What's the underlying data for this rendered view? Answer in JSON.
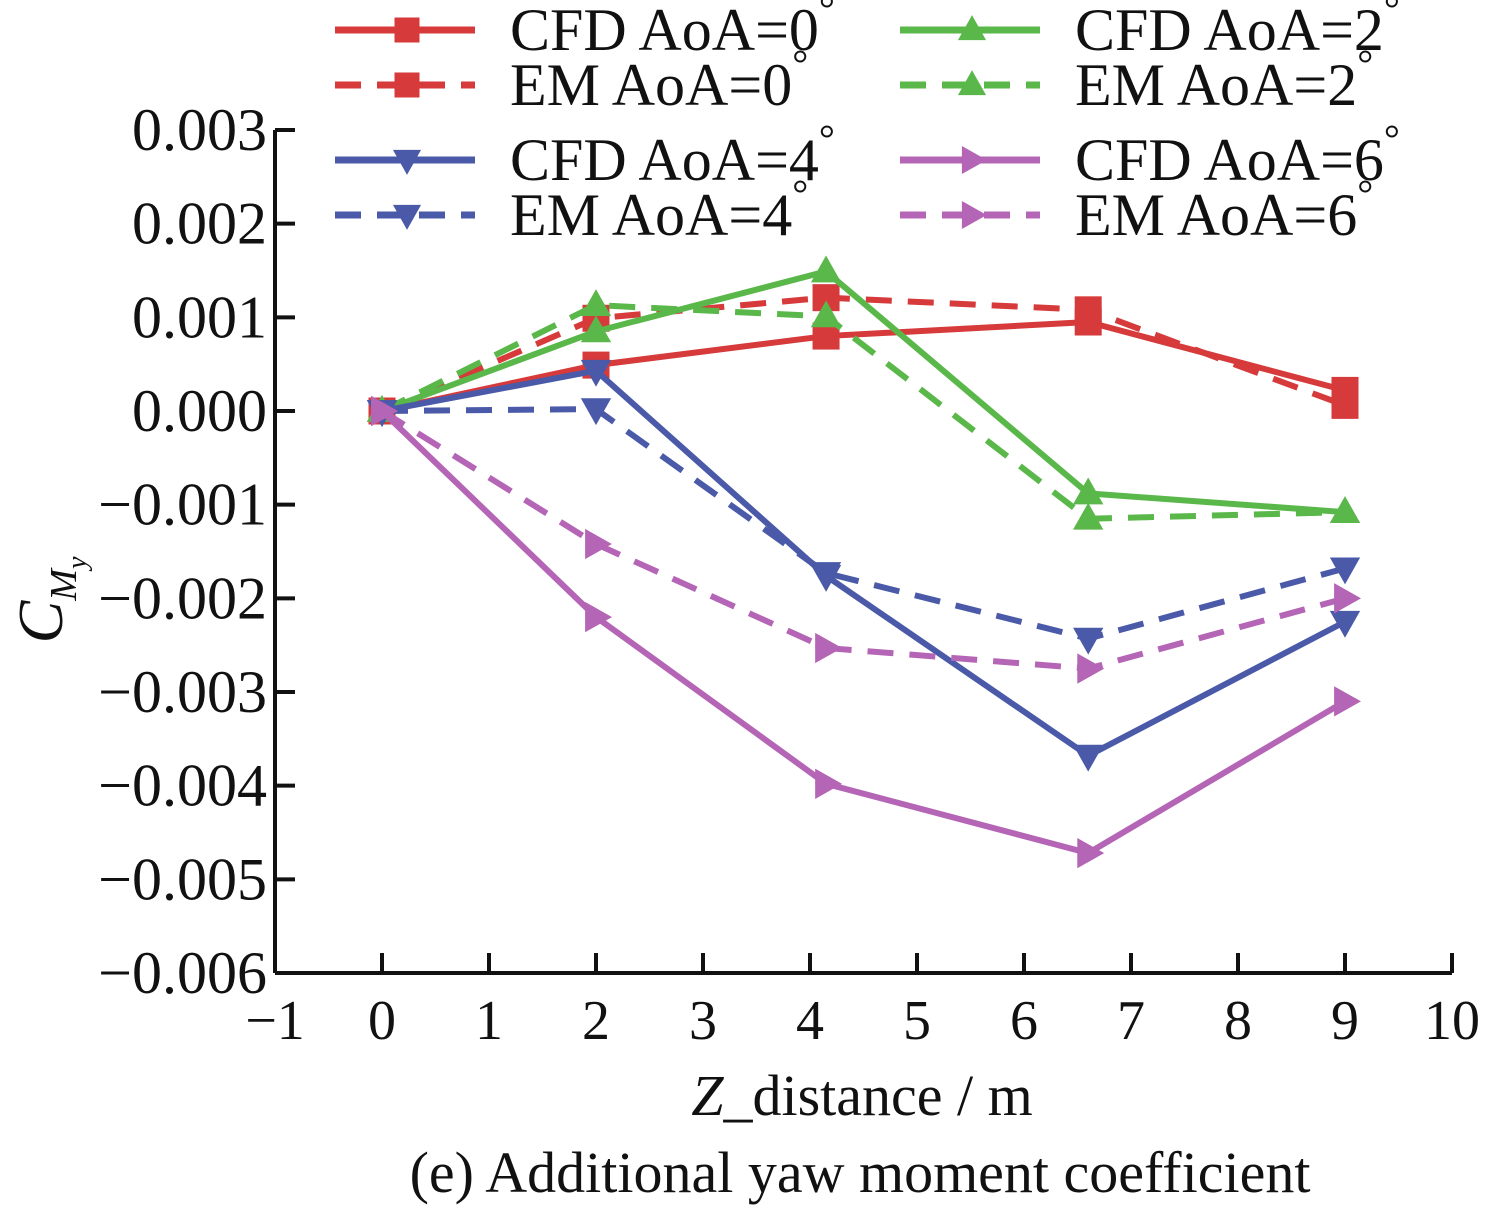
{
  "chart_data": {
    "type": "line",
    "title": "(e) Additional yaw moment coefficient",
    "xlabel": {
      "italic": "Z",
      "rest": "_distance / m"
    },
    "ylabel": {
      "main": "C",
      "sub": "M",
      "subsub": "y"
    },
    "xlim": [
      -1,
      10
    ],
    "ylim": [
      -0.006,
      0.003
    ],
    "x_ticks": [
      "−1",
      "0",
      "1",
      "2",
      "3",
      "4",
      "5",
      "6",
      "7",
      "8",
      "9",
      "10"
    ],
    "x_tick_values": [
      -1,
      0,
      1,
      2,
      3,
      4,
      5,
      6,
      7,
      8,
      9,
      10
    ],
    "y_ticks": [
      "0.003",
      "0.002",
      "0.001",
      "0.000",
      "−0.001",
      "−0.002",
      "−0.003",
      "−0.004",
      "−0.005",
      "−0.006"
    ],
    "y_tick_values": [
      0.003,
      0.002,
      0.001,
      0.0,
      -0.001,
      -0.002,
      -0.003,
      -0.004,
      -0.005,
      -0.006
    ],
    "x": [
      0,
      2,
      4.15,
      6.6,
      9
    ],
    "series": [
      {
        "name": "CFD AoA=0",
        "style": "solid",
        "color": "#d63a3a",
        "marker": "square",
        "values": [
          0.0,
          0.00049,
          0.0008,
          0.00095,
          0.00022
        ]
      },
      {
        "name": "EM AoA=0",
        "style": "dashed",
        "color": "#d63a3a",
        "marker": "square",
        "values": [
          0.0,
          0.00099,
          0.00121,
          0.00108,
          6e-05
        ]
      },
      {
        "name": "CFD AoA=2",
        "style": "solid",
        "color": "#5ab84a",
        "marker": "triangle-up",
        "values": [
          0.0,
          0.00085,
          0.00149,
          -0.00088,
          -0.00108
        ]
      },
      {
        "name": "EM AoA=2",
        "style": "dashed",
        "color": "#5ab84a",
        "marker": "triangle-up",
        "values": [
          0.0,
          0.00113,
          0.00101,
          -0.00115,
          -0.00108
        ]
      },
      {
        "name": "CFD AoA=4",
        "style": "solid",
        "color": "#4a5aa8",
        "marker": "triangle-down",
        "values": [
          0.0,
          0.00043,
          -0.00176,
          -0.00368,
          -0.00225
        ]
      },
      {
        "name": "EM AoA=4",
        "style": "dashed",
        "color": "#4a5aa8",
        "marker": "triangle-down",
        "values": [
          0.0,
          2e-05,
          -0.00173,
          -0.00243,
          -0.00168
        ]
      },
      {
        "name": "CFD AoA=6",
        "style": "solid",
        "color": "#b565b5",
        "marker": "triangle-right",
        "values": [
          0.0,
          -0.0022,
          -0.00398,
          -0.00472,
          -0.0031
        ]
      },
      {
        "name": "EM AoA=6",
        "style": "dashed",
        "color": "#b565b5",
        "marker": "triangle-right",
        "values": [
          0.0,
          -0.00142,
          -0.00253,
          -0.00275,
          -0.002
        ]
      }
    ],
    "legend": {
      "placement": "top",
      "degree_symbol": "°",
      "entries": [
        "CFD AoA=0",
        "CFD AoA=2",
        "EM AoA=0",
        "EM AoA=2",
        "CFD AoA=4",
        "CFD AoA=6",
        "EM AoA=4",
        "EM AoA=6"
      ]
    },
    "grid": false
  }
}
